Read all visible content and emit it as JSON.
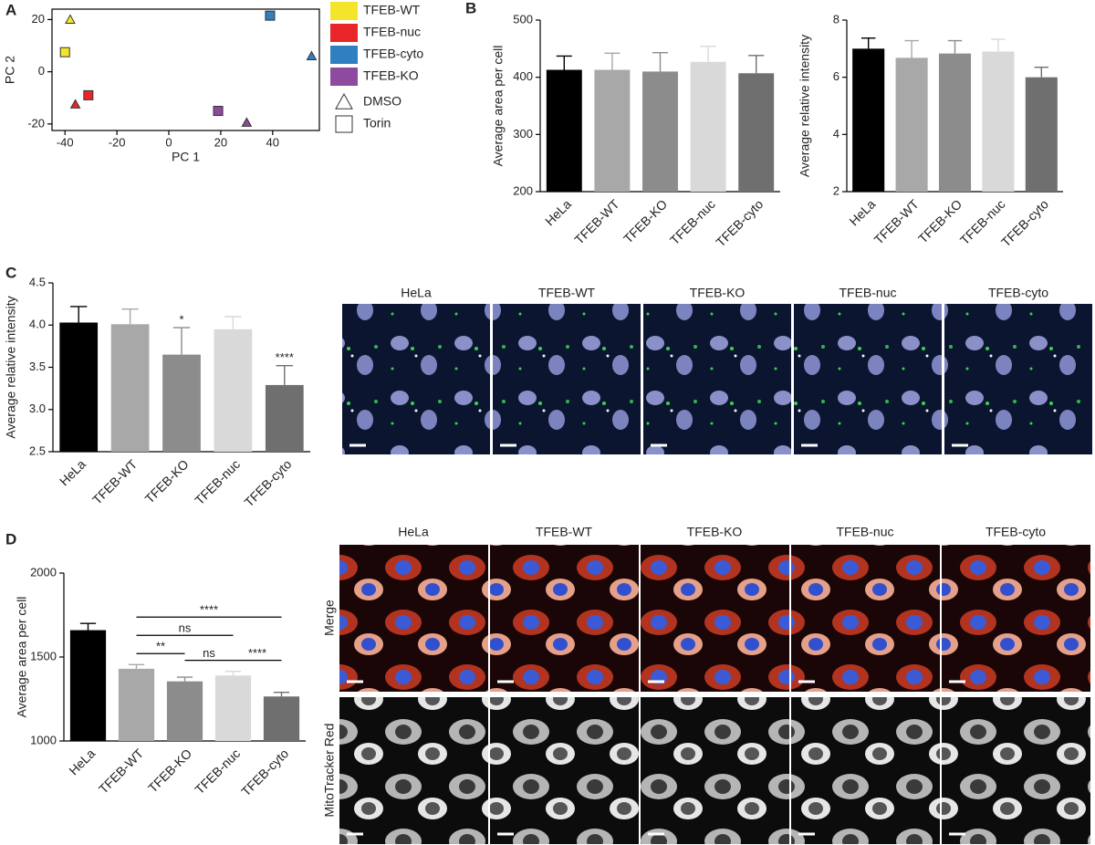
{
  "panel_labels": [
    "A",
    "B",
    "C",
    "D"
  ],
  "chart_data": [
    {
      "type": "scatter",
      "xlabel": "PC 1",
      "ylabel": "PC 2",
      "xlim": [
        -45,
        58
      ],
      "ylim": [
        -22.5,
        24
      ],
      "xticks": [
        -40,
        -20,
        0,
        20,
        40
      ],
      "yticks": [
        -20,
        0,
        20
      ],
      "series": [
        {
          "name": "TFEB-WT",
          "color": "#f5e52a",
          "x": [
            -38,
            -40
          ],
          "values": [
            20,
            7.5
          ],
          "markers": [
            "triangle",
            "square"
          ]
        },
        {
          "name": "TFEB-nuc",
          "color": "#e8262a",
          "x": [
            -36,
            -31
          ],
          "values": [
            -12.5,
            -9
          ],
          "markers": [
            "triangle",
            "square"
          ]
        },
        {
          "name": "TFEB-cyto",
          "color": "#2f7fc1",
          "x": [
            55,
            39
          ],
          "values": [
            6,
            21.5
          ],
          "markers": [
            "triangle",
            "square"
          ]
        },
        {
          "name": "TFEB-KO",
          "color": "#8e4a9e",
          "x": [
            30,
            19
          ],
          "values": [
            -19.5,
            -15
          ],
          "markers": [
            "triangle",
            "square"
          ]
        }
      ],
      "shape_legend": [
        {
          "label": "DMSO",
          "marker": "triangle"
        },
        {
          "label": "Torin",
          "marker": "square"
        }
      ]
    },
    {
      "type": "bar",
      "ylabel": "Average area per cell",
      "categories": [
        "HeLa",
        "TFEB-WT",
        "TFEB-KO",
        "TFEB-nuc",
        "TFEB-cyto"
      ],
      "values": [
        413,
        413,
        410,
        427,
        407
      ],
      "errors": [
        24,
        29,
        33,
        27,
        31
      ],
      "colors": [
        "#000000",
        "#a8a8a8",
        "#8c8c8c",
        "#d9d9d9",
        "#6f6f6f"
      ],
      "ylim": [
        200,
        500
      ],
      "yticks": [
        200,
        300,
        400,
        500
      ]
    },
    {
      "type": "bar",
      "ylabel": "Average relative intensity",
      "categories": [
        "HeLa",
        "TFEB-WT",
        "TFEB-KO",
        "TFEB-nuc",
        "TFEB-cyto"
      ],
      "values": [
        7.0,
        6.68,
        6.83,
        6.9,
        6.0
      ],
      "errors": [
        0.37,
        0.6,
        0.45,
        0.43,
        0.35
      ],
      "colors": [
        "#000000",
        "#a8a8a8",
        "#8c8c8c",
        "#d9d9d9",
        "#6f6f6f"
      ],
      "ylim": [
        2,
        8
      ],
      "yticks": [
        2,
        4,
        6,
        8
      ]
    },
    {
      "type": "bar",
      "ylabel": "Average relative intensity",
      "categories": [
        "HeLa",
        "TFEB-WT",
        "TFEB-KO",
        "TFEB-nuc",
        "TFEB-cyto"
      ],
      "values": [
        4.03,
        4.01,
        3.65,
        3.95,
        3.29
      ],
      "errors": [
        0.19,
        0.18,
        0.32,
        0.15,
        0.23
      ],
      "significance": [
        null,
        null,
        "*",
        null,
        "****"
      ],
      "colors": [
        "#000000",
        "#a8a8a8",
        "#8c8c8c",
        "#d9d9d9",
        "#6f6f6f"
      ],
      "ylim": [
        2.5,
        4.5
      ],
      "yticks": [
        2.5,
        {
          "value": 3,
          "label": "3.0"
        },
        3.5,
        {
          "value": 4,
          "label": "4.0"
        },
        4.5
      ]
    },
    {
      "type": "bar",
      "ylabel": "Average area per cell",
      "categories": [
        "HeLa",
        "TFEB-WT",
        "TFEB-KO",
        "TFEB-nuc",
        "TFEB-cyto"
      ],
      "values": [
        1660,
        1430,
        1355,
        1390,
        1265
      ],
      "errors": [
        40,
        25,
        25,
        25,
        25
      ],
      "colors": [
        "#000000",
        "#a8a8a8",
        "#8c8c8c",
        "#d9d9d9",
        "#6f6f6f"
      ],
      "ylim": [
        1000,
        2000
      ],
      "yticks": [
        1000,
        1500,
        2000
      ],
      "comparisons": [
        {
          "from": 1,
          "to": 2,
          "label": "**"
        },
        {
          "from": 2,
          "to": 3,
          "label": "ns"
        },
        {
          "from": 3,
          "to": 4,
          "label": "****"
        },
        {
          "from": 1,
          "to": 3,
          "label": "ns"
        },
        {
          "from": 1,
          "to": 4,
          "label": "****"
        }
      ]
    }
  ],
  "micrographs_c": {
    "columns": [
      "HeLa",
      "TFEB-WT",
      "TFEB-KO",
      "TFEB-nuc",
      "TFEB-cyto"
    ]
  },
  "micrographs_d": {
    "columns": [
      "HeLa",
      "TFEB-WT",
      "TFEB-KO",
      "TFEB-nuc",
      "TFEB-cyto"
    ],
    "rows": [
      "Merge",
      "MitoTracker Red"
    ]
  }
}
